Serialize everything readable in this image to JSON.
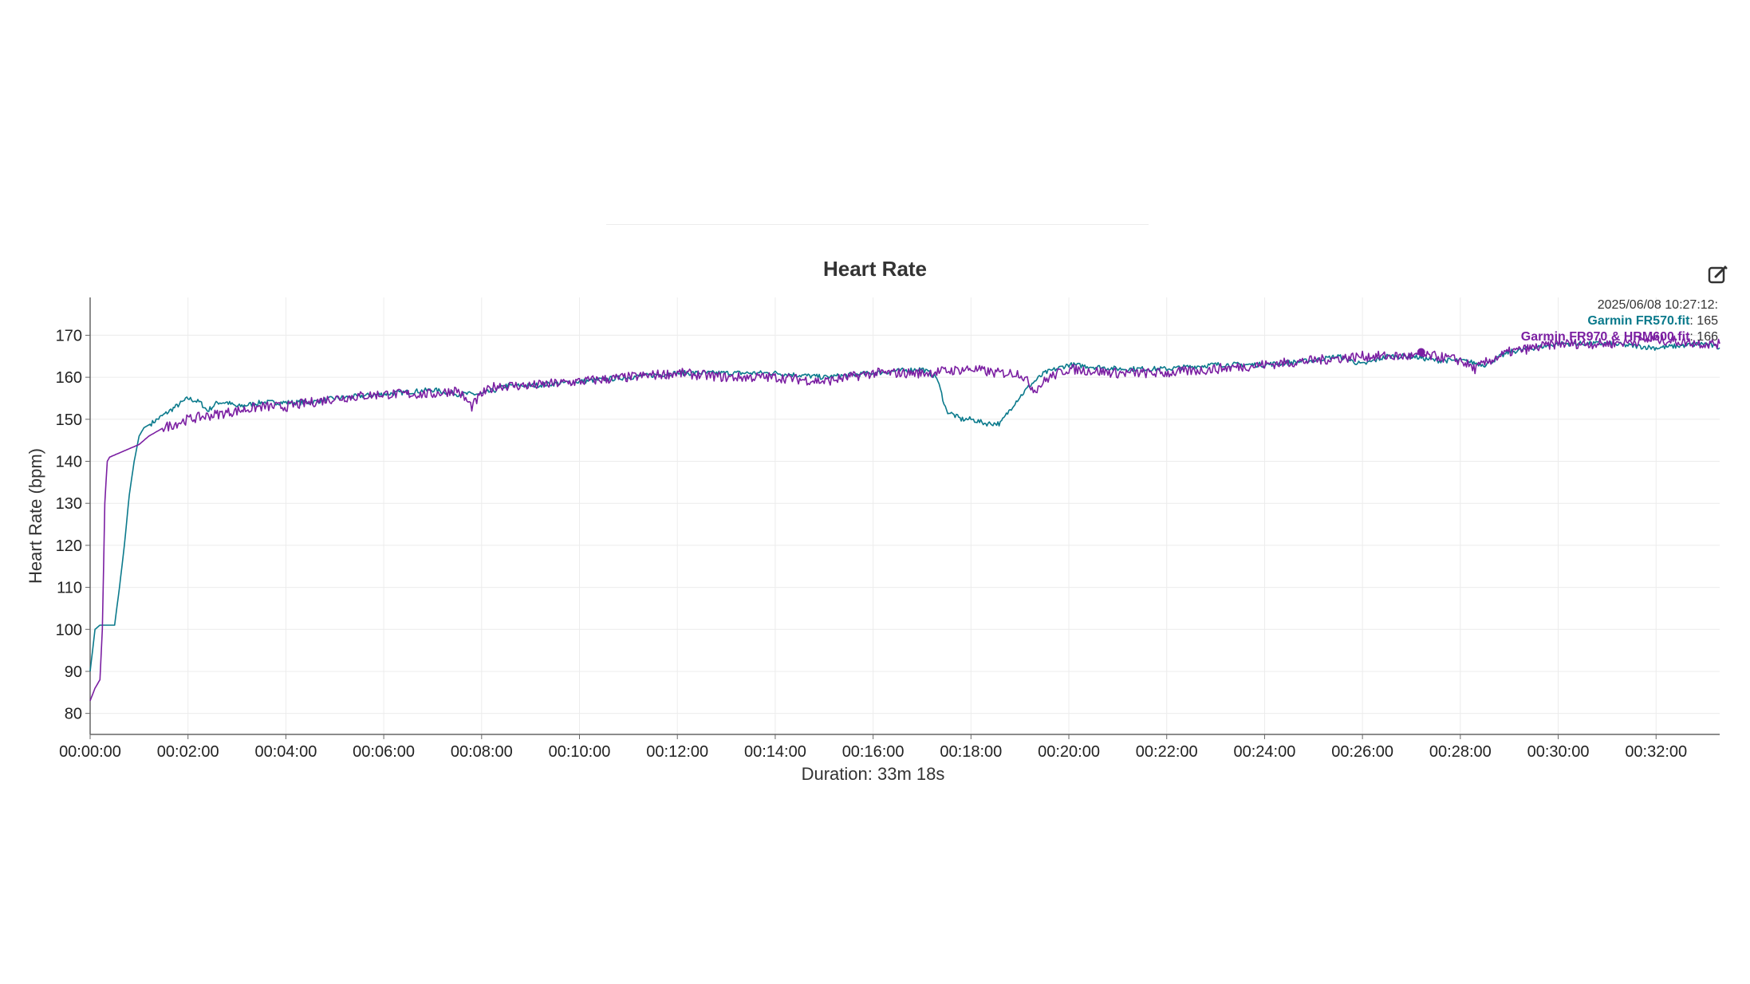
{
  "chart_data": {
    "type": "line",
    "title": "Heart Rate",
    "xlabel": "Duration: 33m 18s",
    "ylabel": "Heart Rate (bpm)",
    "x_unit": "minutes",
    "xlim": [
      0,
      33.3
    ],
    "ylim": [
      75,
      179
    ],
    "x_ticks": [
      {
        "value": 0,
        "label": "00:00:00"
      },
      {
        "value": 2,
        "label": "00:02:00"
      },
      {
        "value": 4,
        "label": "00:04:00"
      },
      {
        "value": 6,
        "label": "00:06:00"
      },
      {
        "value": 8,
        "label": "00:08:00"
      },
      {
        "value": 10,
        "label": "00:10:00"
      },
      {
        "value": 12,
        "label": "00:12:00"
      },
      {
        "value": 14,
        "label": "00:14:00"
      },
      {
        "value": 16,
        "label": "00:16:00"
      },
      {
        "value": 18,
        "label": "00:18:00"
      },
      {
        "value": 20,
        "label": "00:20:00"
      },
      {
        "value": 22,
        "label": "00:22:00"
      },
      {
        "value": 24,
        "label": "00:24:00"
      },
      {
        "value": 26,
        "label": "00:26:00"
      },
      {
        "value": 28,
        "label": "00:28:00"
      },
      {
        "value": 30,
        "label": "00:30:00"
      },
      {
        "value": 32,
        "label": "00:32:00"
      }
    ],
    "y_ticks": [
      80,
      90,
      100,
      110,
      120,
      130,
      140,
      150,
      160,
      170
    ],
    "grid": true,
    "series": [
      {
        "name": "Garmin FR570.fit",
        "color": "#0b7a8c",
        "x": [
          0,
          0.1,
          0.2,
          0.35,
          0.5,
          0.6,
          0.7,
          0.8,
          0.9,
          1.0,
          1.1,
          1.25,
          1.5,
          1.75,
          2.0,
          2.25,
          2.4,
          2.6,
          2.8,
          3.0,
          3.5,
          4.0,
          4.5,
          5.0,
          6.0,
          7.0,
          7.5,
          7.8,
          8.0,
          8.3,
          8.5,
          9.0,
          10.0,
          11.0,
          12.0,
          13.0,
          14.0,
          15.0,
          16.0,
          17.0,
          17.3,
          17.5,
          17.8,
          18.0,
          18.3,
          18.6,
          18.9,
          19.2,
          19.5,
          20.0,
          21.0,
          22.0,
          23.0,
          24.0,
          25.0,
          25.5,
          26.0,
          26.5,
          27.0,
          27.5,
          28.0,
          28.5,
          29.0,
          29.5,
          30.0,
          31.0,
          32.0,
          33.0,
          33.3
        ],
        "y": [
          90,
          100,
          101,
          101,
          101,
          110,
          120,
          132,
          140,
          146,
          148,
          149,
          151,
          153,
          155,
          154,
          152,
          154,
          154,
          153,
          154,
          154,
          154,
          155,
          156,
          157,
          156,
          156,
          156,
          157,
          158,
          158,
          159,
          160,
          161,
          161,
          161,
          160,
          161,
          162,
          160,
          152,
          150,
          150,
          149,
          149,
          154,
          158,
          161,
          163,
          162,
          162,
          163,
          163,
          164,
          165,
          163,
          165,
          165,
          164,
          164,
          163,
          166,
          167,
          168,
          168,
          167,
          168,
          167
        ]
      },
      {
        "name": "Garmin FR970 & HRM600.fit",
        "color": "#7b1fa2",
        "x": [
          0,
          0.1,
          0.2,
          0.25,
          0.3,
          0.35,
          0.4,
          0.6,
          0.8,
          1.0,
          1.2,
          1.5,
          2.0,
          2.5,
          3.0,
          3.5,
          4.0,
          4.5,
          5.0,
          6.0,
          7.0,
          7.5,
          7.8,
          8.0,
          8.3,
          8.5,
          9.0,
          10.0,
          11.0,
          12.0,
          13.0,
          14.0,
          15.0,
          16.0,
          17.0,
          18.0,
          18.5,
          19.0,
          19.3,
          19.6,
          20.0,
          21.0,
          22.0,
          23.0,
          24.0,
          25.0,
          26.0,
          27.0,
          27.5,
          28.0,
          28.3,
          28.6,
          29.0,
          29.5,
          30.0,
          31.0,
          32.0,
          33.0,
          33.3
        ],
        "y": [
          83,
          86,
          88,
          100,
          130,
          140,
          141,
          142,
          143,
          144,
          146,
          148,
          150,
          151,
          152,
          153,
          153,
          154,
          155,
          156,
          156,
          157,
          153,
          156,
          158,
          158,
          158,
          159,
          160,
          161,
          160,
          160,
          159,
          161,
          161,
          162,
          161,
          161,
          157,
          160,
          162,
          161,
          161,
          162,
          163,
          164,
          165,
          165,
          165,
          164,
          162,
          164,
          166,
          167,
          168,
          168,
          169,
          168,
          168
        ]
      }
    ],
    "tooltip": {
      "time": "2025/06/08 10:27:12:",
      "items": [
        {
          "name": "Garmin FR570.fit",
          "value": "165",
          "color": "#0b7a8c"
        },
        {
          "name": "Garmin FR970 & HRM600.fit",
          "value": "166",
          "color": "#7b1fa2"
        }
      ]
    },
    "cursor_x": 27.2,
    "cursor_y": 166
  },
  "toolbar": {
    "edit_icon": "edit-icon"
  }
}
